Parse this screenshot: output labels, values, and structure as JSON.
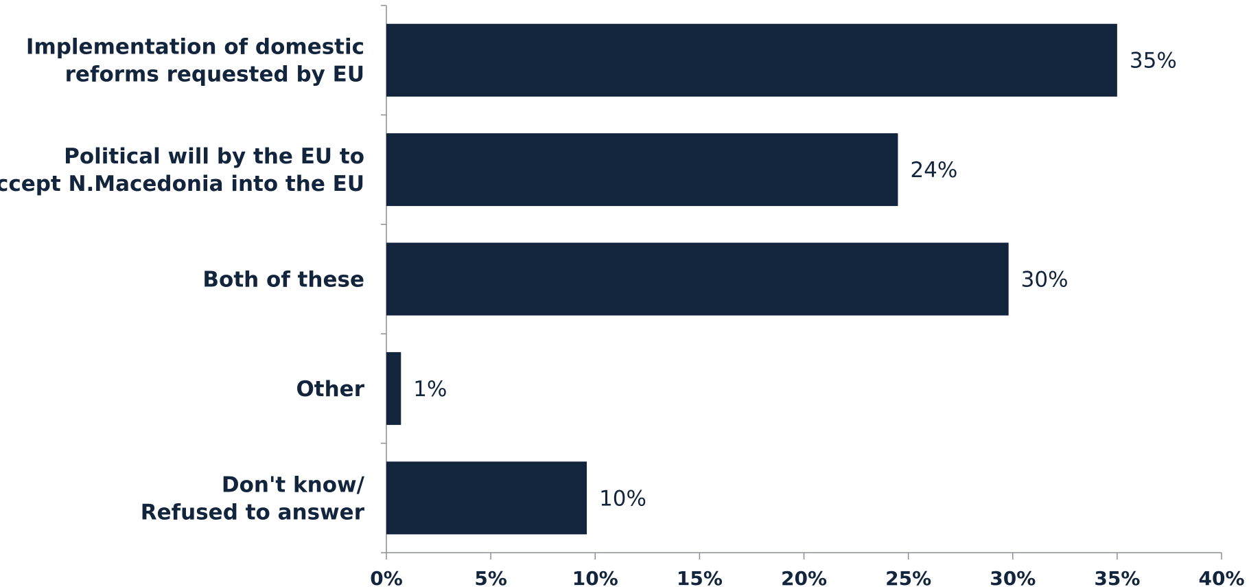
{
  "chart_data": {
    "type": "bar",
    "orientation": "horizontal",
    "categories": [
      [
        "Implementation of domestic",
        "reforms requested by EU"
      ],
      [
        "Political will by the EU to",
        "accept N.Macedonia into the EU"
      ],
      [
        "Both of these"
      ],
      [
        "Other"
      ],
      [
        "Don't know/",
        "Refused to answer"
      ]
    ],
    "values": [
      35,
      24.5,
      29.8,
      0.7,
      9.6
    ],
    "value_labels": [
      "35%",
      "24%",
      "30%",
      "1%",
      "10%"
    ],
    "xlim": [
      0,
      40
    ],
    "xticks": [
      0,
      5,
      10,
      15,
      20,
      25,
      30,
      35,
      40
    ],
    "xtick_labels": [
      "0%",
      "5%",
      "10%",
      "15%",
      "20%",
      "25%",
      "30%",
      "35%",
      "40%"
    ],
    "bar_color": "#13253d",
    "grid": false,
    "title": "",
    "xlabel": "",
    "ylabel": ""
  }
}
